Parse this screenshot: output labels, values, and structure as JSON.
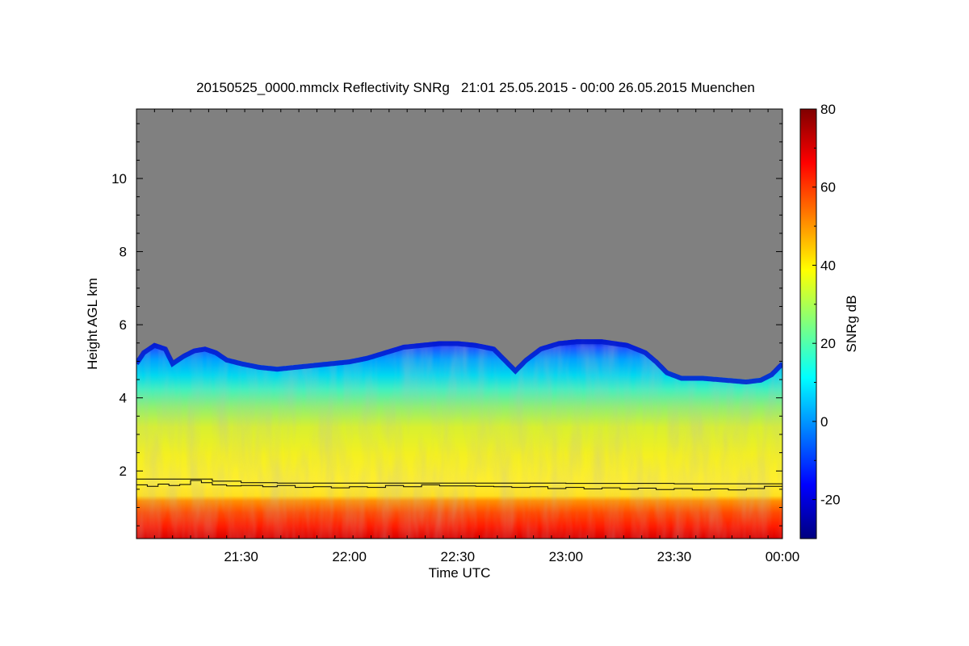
{
  "chart_data": {
    "type": "heatmap",
    "title": "20150525_0000.mmclx Reflectivity SNRg   21:01 25.05.2015 - 00:00 26.05.2015 Muenchen",
    "xlabel": "Time UTC",
    "ylabel": "Height AGL km",
    "x_range_minutes": [
      1261,
      1440
    ],
    "x_ticks": [
      {
        "value": 1290,
        "label": "21:30"
      },
      {
        "value": 1320,
        "label": "22:00"
      },
      {
        "value": 1350,
        "label": "22:30"
      },
      {
        "value": 1380,
        "label": "23:00"
      },
      {
        "value": 1410,
        "label": "23:30"
      },
      {
        "value": 1440,
        "label": "00:00"
      }
    ],
    "ylim": [
      0.15,
      11.9
    ],
    "y_ticks": [
      2,
      4,
      6,
      8,
      10
    ],
    "colorbar": {
      "label": "SNRg dB",
      "range": [
        -30,
        80
      ],
      "ticks": [
        -20,
        0,
        20,
        40,
        60,
        80
      ],
      "colormap": [
        "#00007f",
        "#0000ff",
        "#007fff",
        "#00ffff",
        "#7fff7f",
        "#ffff00",
        "#ff7f00",
        "#ff0000",
        "#7f0000"
      ]
    },
    "no_signal_color": "#808080",
    "echo_top_km": [
      [
        1261,
        5.0
      ],
      [
        1263,
        5.3
      ],
      [
        1266,
        5.5
      ],
      [
        1269,
        5.4
      ],
      [
        1271,
        5.0
      ],
      [
        1274,
        5.2
      ],
      [
        1277,
        5.35
      ],
      [
        1280,
        5.4
      ],
      [
        1283,
        5.3
      ],
      [
        1286,
        5.1
      ],
      [
        1290,
        5.0
      ],
      [
        1295,
        4.9
      ],
      [
        1300,
        4.85
      ],
      [
        1305,
        4.9
      ],
      [
        1310,
        4.95
      ],
      [
        1315,
        5.0
      ],
      [
        1320,
        5.05
      ],
      [
        1325,
        5.15
      ],
      [
        1330,
        5.3
      ],
      [
        1335,
        5.45
      ],
      [
        1340,
        5.5
      ],
      [
        1345,
        5.55
      ],
      [
        1350,
        5.55
      ],
      [
        1355,
        5.5
      ],
      [
        1360,
        5.4
      ],
      [
        1363,
        5.1
      ],
      [
        1366,
        4.8
      ],
      [
        1369,
        5.1
      ],
      [
        1373,
        5.4
      ],
      [
        1378,
        5.55
      ],
      [
        1383,
        5.6
      ],
      [
        1390,
        5.6
      ],
      [
        1397,
        5.5
      ],
      [
        1402,
        5.3
      ],
      [
        1405,
        5.05
      ],
      [
        1408,
        4.75
      ],
      [
        1412,
        4.6
      ],
      [
        1418,
        4.6
      ],
      [
        1424,
        4.55
      ],
      [
        1430,
        4.5
      ],
      [
        1434,
        4.55
      ],
      [
        1437,
        4.7
      ],
      [
        1440,
        5.0
      ]
    ],
    "line_upper_km": [
      [
        1261,
        1.78
      ],
      [
        1270,
        1.78
      ],
      [
        1282,
        1.72
      ],
      [
        1290,
        1.68
      ],
      [
        1300,
        1.67
      ],
      [
        1320,
        1.67
      ],
      [
        1350,
        1.67
      ],
      [
        1380,
        1.66
      ],
      [
        1410,
        1.65
      ],
      [
        1440,
        1.64
      ]
    ],
    "line_lower_km": [
      [
        1261,
        1.62
      ],
      [
        1264,
        1.58
      ],
      [
        1267,
        1.64
      ],
      [
        1270,
        1.6
      ],
      [
        1273,
        1.63
      ],
      [
        1276,
        1.74
      ],
      [
        1279,
        1.68
      ],
      [
        1282,
        1.62
      ],
      [
        1286,
        1.59
      ],
      [
        1290,
        1.6
      ],
      [
        1296,
        1.57
      ],
      [
        1300,
        1.6
      ],
      [
        1305,
        1.55
      ],
      [
        1310,
        1.57
      ],
      [
        1315,
        1.54
      ],
      [
        1320,
        1.57
      ],
      [
        1325,
        1.55
      ],
      [
        1330,
        1.6
      ],
      [
        1335,
        1.57
      ],
      [
        1340,
        1.62
      ],
      [
        1345,
        1.59
      ],
      [
        1350,
        1.59
      ],
      [
        1355,
        1.58
      ],
      [
        1360,
        1.57
      ],
      [
        1365,
        1.55
      ],
      [
        1370,
        1.57
      ],
      [
        1375,
        1.52
      ],
      [
        1380,
        1.55
      ],
      [
        1385,
        1.51
      ],
      [
        1390,
        1.54
      ],
      [
        1395,
        1.5
      ],
      [
        1400,
        1.53
      ],
      [
        1405,
        1.49
      ],
      [
        1410,
        1.52
      ],
      [
        1415,
        1.48
      ],
      [
        1420,
        1.51
      ],
      [
        1425,
        1.48
      ],
      [
        1430,
        1.52
      ],
      [
        1435,
        1.58
      ],
      [
        1440,
        1.6
      ]
    ]
  }
}
